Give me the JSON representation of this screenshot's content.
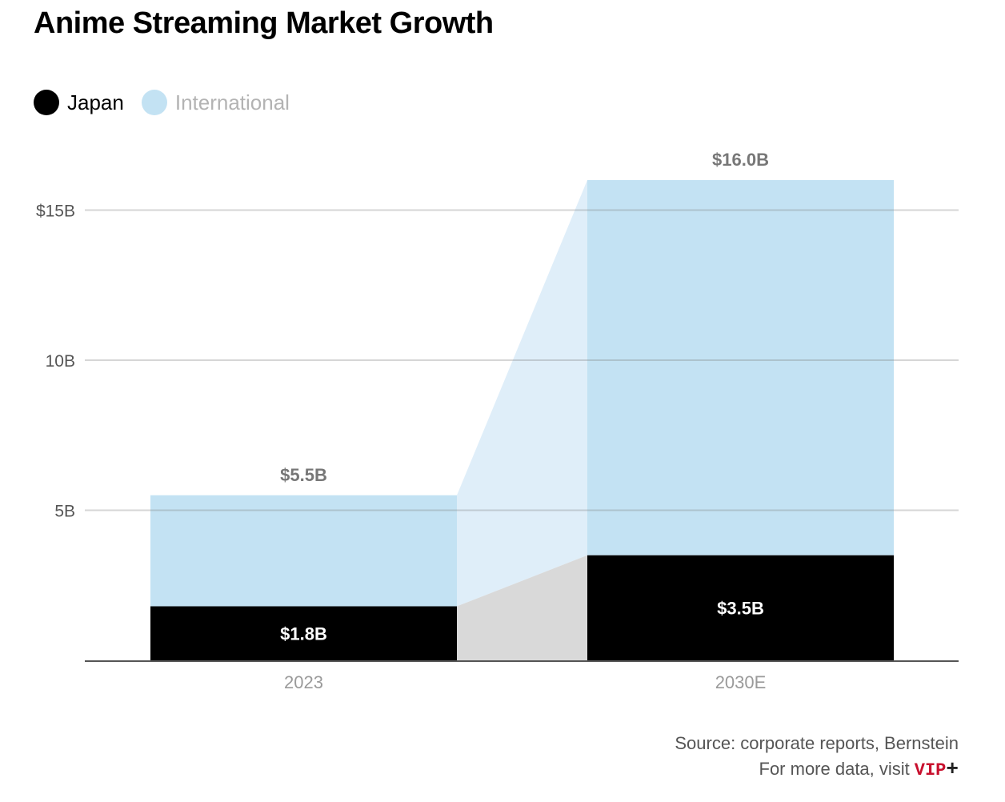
{
  "chart_data": {
    "type": "bar",
    "stacked": true,
    "title": "Anime Streaming Market Growth",
    "xlabel": "",
    "ylabel": "",
    "categories": [
      "2023",
      "2030E"
    ],
    "series": [
      {
        "name": "Japan",
        "values": [
          1.8,
          3.5
        ],
        "color": "#000000",
        "labels": [
          "$1.8B",
          "$3.5B"
        ]
      },
      {
        "name": "International",
        "values": [
          3.7,
          12.5
        ],
        "color": "#c3e2f3"
      }
    ],
    "totals": [
      5.5,
      16.0
    ],
    "total_labels": [
      "$5.5B",
      "$16.0B"
    ],
    "ylim": [
      0,
      16
    ],
    "yticks": [
      {
        "value": 5,
        "label": "5B"
      },
      {
        "value": 10,
        "label": "10B"
      },
      {
        "value": 15,
        "label": "$15B"
      }
    ],
    "grid": true,
    "legend_position": "top-left",
    "connector_colors": {
      "international": "#dfeef9",
      "japan": "#d9d9d9"
    }
  },
  "legend": {
    "items": [
      {
        "label": "Japan",
        "color": "#000000",
        "text_color": "#000000"
      },
      {
        "label": "International",
        "color": "#c3e2f3",
        "text_color": "#b3b3b3"
      }
    ]
  },
  "footer": {
    "source": "Source: corporate reports, Bernstein",
    "more_data": "For more data, visit",
    "brand": "VIP",
    "brand_plus": "+"
  }
}
